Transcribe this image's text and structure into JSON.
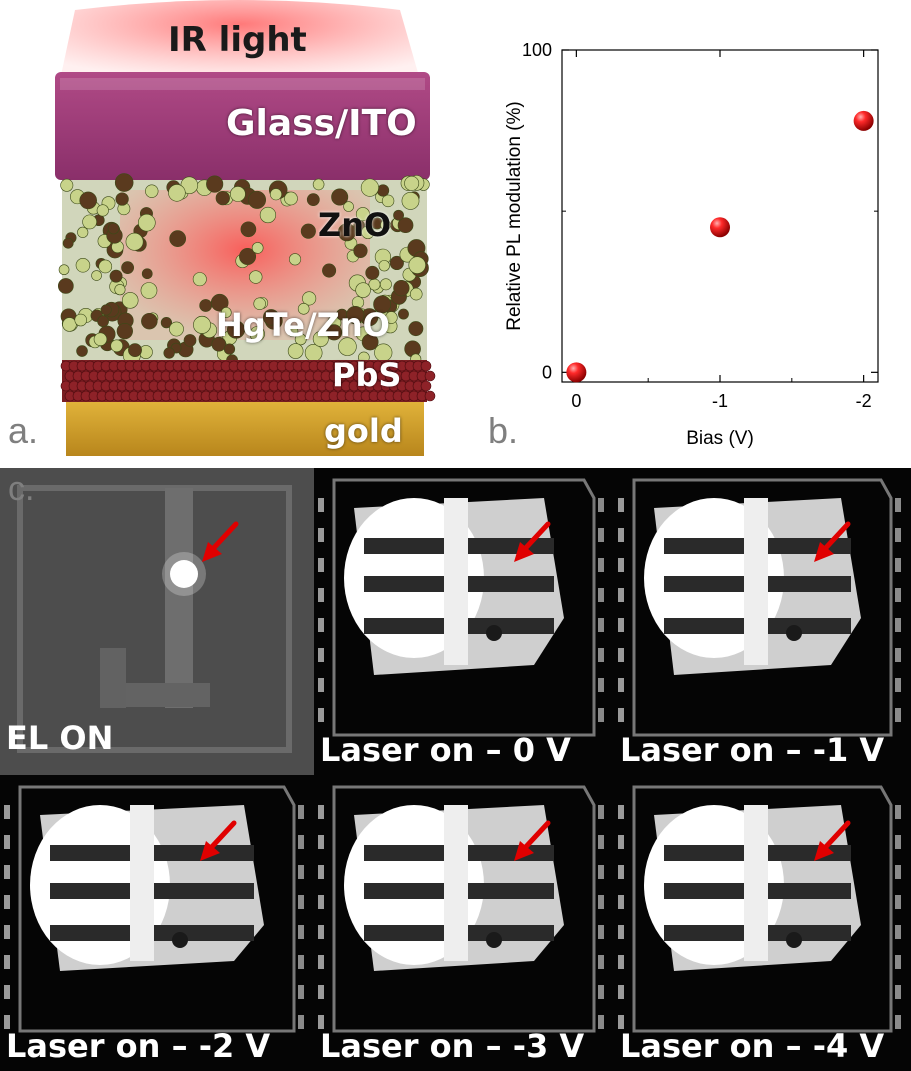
{
  "panel_a": {
    "letter": "a.",
    "labels": {
      "ir_light": "IR light",
      "glass_ito": "Glass/ITO",
      "zno": "ZnO",
      "hgte_zno": "HgTe/ZnO",
      "pbs": "PbS",
      "gold": "gold"
    }
  },
  "panel_b": {
    "letter": "b.",
    "colors": {
      "marker": "#e00000",
      "axis": "#000000"
    }
  },
  "chart_data": {
    "type": "scatter",
    "x": [
      0,
      -1,
      -2
    ],
    "y": [
      0,
      45,
      78
    ],
    "x_ticks": [
      "0",
      "-1",
      "-2"
    ],
    "y_ticks": [
      "0",
      "100"
    ],
    "xlabel": "Bias (V)",
    "ylabel": "Relative PL modulation (%)",
    "xlim": [
      0.1,
      -2.1
    ],
    "ylim": [
      -3,
      100
    ],
    "grid": false
  },
  "panel_c": {
    "letter": "c.",
    "tiles": [
      {
        "caption": "EL ON",
        "mode": "el",
        "arrow_color": "#e00000"
      },
      {
        "caption": "Laser on – 0 V",
        "mode": "laser",
        "arrow_color": "#e00000"
      },
      {
        "caption": "Laser on – -1 V",
        "mode": "laser",
        "arrow_color": "#e00000"
      },
      {
        "caption": "Laser on – -2 V",
        "mode": "laser",
        "arrow_color": "#e00000"
      },
      {
        "caption": "Laser on – -3 V",
        "mode": "laser",
        "arrow_color": "#e00000"
      },
      {
        "caption": "Laser on – -4 V",
        "mode": "laser",
        "arrow_color": "#e00000"
      }
    ]
  }
}
